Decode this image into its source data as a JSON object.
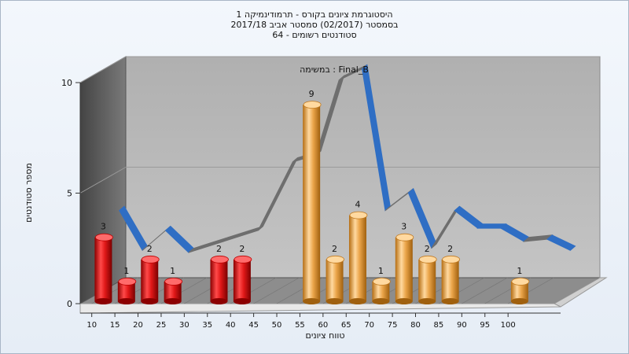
{
  "chart_data": {
    "type": "bar",
    "title_lines": [
      "היסטוגרמת ציונים בקורס - תרמודינמיקה 1",
      "בסמסטר  (02/2017)  סמסטר אביב 2017/18",
      "סטודנטים רשומים - 64"
    ],
    "annotation": "במשימה : Final_B",
    "xlabel": "טווח ציונים",
    "ylabel": "מספר סטודנטים",
    "ylim": [
      0,
      10
    ],
    "y_ticks": [
      0,
      5,
      10
    ],
    "x_ticks": [
      10,
      15,
      20,
      25,
      30,
      35,
      40,
      45,
      50,
      55,
      60,
      65,
      70,
      75,
      80,
      85,
      90,
      95,
      100
    ],
    "bars": [
      {
        "x": 12.5,
        "value": 3,
        "label": "3",
        "color": "red"
      },
      {
        "x": 17.5,
        "value": 1,
        "label": "1",
        "color": "red"
      },
      {
        "x": 22.5,
        "value": 2,
        "label": "2",
        "color": "red"
      },
      {
        "x": 27.5,
        "value": 1,
        "label": "1",
        "color": "red"
      },
      {
        "x": 37.5,
        "value": 2,
        "label": "2",
        "color": "red"
      },
      {
        "x": 42.5,
        "value": 2,
        "label": "2",
        "color": "red"
      },
      {
        "x": 57.5,
        "value": 9,
        "label": "9",
        "color": "orange"
      },
      {
        "x": 62.5,
        "value": 2,
        "label": "2",
        "color": "orange"
      },
      {
        "x": 67.5,
        "value": 4,
        "label": "4",
        "color": "orange"
      },
      {
        "x": 72.5,
        "value": 1,
        "label": "1",
        "color": "orange"
      },
      {
        "x": 77.5,
        "value": 3,
        "label": "3",
        "color": "orange"
      },
      {
        "x": 82.5,
        "value": 2,
        "label": "2",
        "color": "orange"
      },
      {
        "x": 87.5,
        "value": 2,
        "label": "2",
        "color": "orange"
      },
      {
        "x": 102.5,
        "value": 1,
        "label": "1",
        "color": "orange"
      }
    ],
    "curve": [
      {
        "x": 12.5,
        "y": 3.8
      },
      {
        "x": 17.5,
        "y": 2.0
      },
      {
        "x": 22.5,
        "y": 2.9
      },
      {
        "x": 27.5,
        "y": 1.9
      },
      {
        "x": 35.0,
        "y": 2.4
      },
      {
        "x": 42.5,
        "y": 2.9
      },
      {
        "x": 50.0,
        "y": 6.0
      },
      {
        "x": 55.0,
        "y": 6.3
      },
      {
        "x": 60.0,
        "y": 9.7
      },
      {
        "x": 65.0,
        "y": 10.2
      },
      {
        "x": 70.0,
        "y": 3.8
      },
      {
        "x": 75.0,
        "y": 4.6
      },
      {
        "x": 80.0,
        "y": 2.1
      },
      {
        "x": 85.0,
        "y": 3.8
      },
      {
        "x": 90.0,
        "y": 3.0
      },
      {
        "x": 95.0,
        "y": 3.0
      },
      {
        "x": 100.0,
        "y": 2.4
      },
      {
        "x": 105.0,
        "y": 2.5
      },
      {
        "x": 110.0,
        "y": 2.0
      }
    ],
    "grid": true,
    "colors": {
      "red": "#d81414",
      "orange": "#e8a13c",
      "curve_front": "#2f6ec4",
      "curve_back": "#6d6d6d",
      "wall": "#5f5f5f",
      "plot_bg": "#b9b9b9"
    }
  }
}
